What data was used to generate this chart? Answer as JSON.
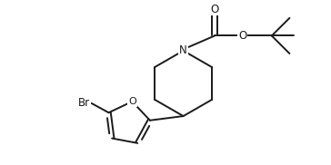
{
  "bg_color": "#ffffff",
  "line_color": "#1a1a1a",
  "line_width": 1.4,
  "font_size": 8.5,
  "figsize": [
    3.64,
    1.82
  ],
  "dpi": 100,
  "xlim": [
    0,
    9.1
  ],
  "ylim": [
    0,
    4.55
  ]
}
